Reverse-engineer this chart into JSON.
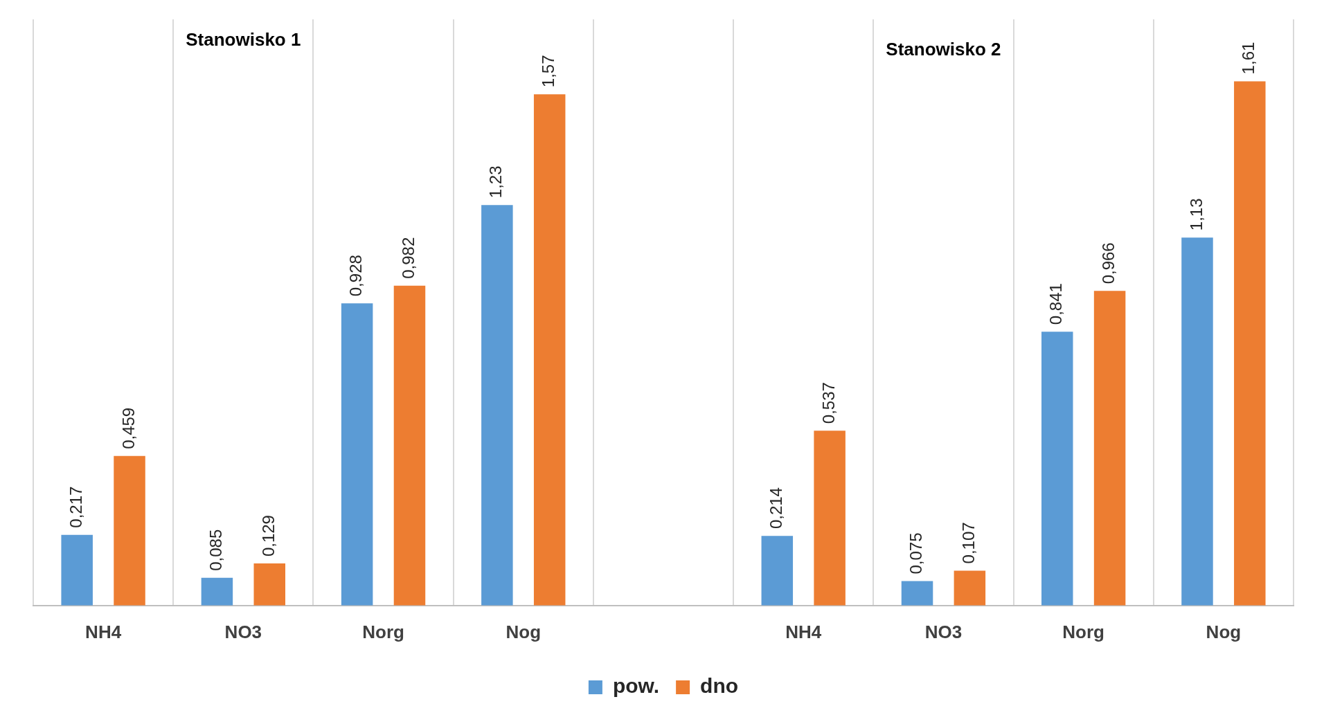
{
  "chart_data": {
    "type": "bar",
    "categories": [
      "NH4",
      "NO3",
      "Norg",
      "Nog",
      null,
      "NH4",
      "NO3",
      "Norg",
      "Nog"
    ],
    "series": [
      {
        "name": "pow.",
        "color": "#5b9bd5",
        "values": [
          0.217,
          0.085,
          0.928,
          1.23,
          null,
          0.214,
          0.075,
          0.841,
          1.13
        ],
        "value_labels": [
          "0,217",
          "0,085",
          "0,928",
          "1,23",
          null,
          "0,214",
          "0,075",
          "0,841",
          "1,13"
        ]
      },
      {
        "name": "dno",
        "color": "#ed7d31",
        "values": [
          0.459,
          0.129,
          0.982,
          1.57,
          null,
          0.537,
          0.107,
          0.966,
          1.61
        ],
        "value_labels": [
          "0,459",
          "0,129",
          "0,982",
          "1,57",
          null,
          "0,537",
          "0,107",
          "0,966",
          "1,61"
        ]
      }
    ],
    "annotations": [
      "Stanowisko 1",
      "Stanowisko 2"
    ],
    "grid": "x",
    "legend": "bottom"
  }
}
